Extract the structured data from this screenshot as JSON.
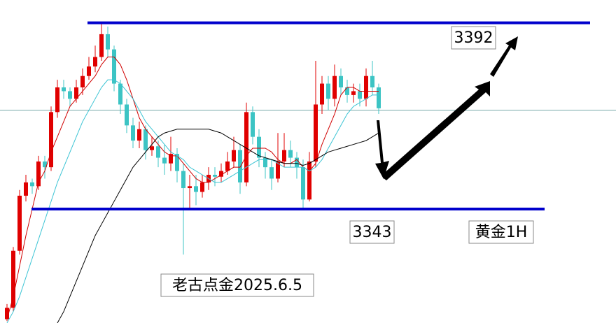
{
  "chart_data": {
    "type": "candlestick",
    "ylim": [
      3313,
      3398
    ],
    "up_color": "#e00000",
    "down_color": "#3cc4c4",
    "open": [
      3314,
      3317,
      3332,
      3346.5,
      3350,
      3349,
      3355.5,
      3354,
      3368.5,
      3375,
      3374,
      3372,
      3375,
      3378,
      3380.5,
      3383,
      3389,
      3385,
      3376,
      3370.5,
      3365,
      3361,
      3364,
      3358.5,
      3359.5,
      3356.5,
      3355,
      3357.5,
      3353,
      3348.5,
      3349,
      3347.5,
      3350,
      3352,
      3351.5,
      3353,
      3355.5,
      3358.5,
      3350,
      3368.5,
      3362,
      3356.5,
      3354,
      3351,
      3355.5,
      3358.5,
      3356.5,
      3354,
      3345.5,
      3355.5,
      3370.5,
      3376,
      3372,
      3378,
      3375,
      3373,
      3374,
      3372,
      3378,
      3375
    ],
    "high": [
      3318,
      3333,
      3348,
      3352,
      3351,
      3357,
      3357,
      3370,
      3377,
      3377,
      3375,
      3377,
      3380,
      3383,
      3386,
      3392,
      3391,
      3386,
      3377,
      3372,
      3367,
      3366,
      3365,
      3362,
      3361,
      3360,
      3362,
      3359,
      3355,
      3352,
      3352,
      3352,
      3354,
      3354,
      3355,
      3358,
      3362,
      3360,
      3371,
      3370,
      3364,
      3358,
      3356,
      3363,
      3363,
      3361,
      3358,
      3356,
      3358,
      3382,
      3378,
      3378,
      3381,
      3380,
      3377,
      3376,
      3376,
      3380,
      3382,
      3376
    ],
    "low": [
      3313.5,
      3316,
      3331,
      3345,
      3347,
      3348,
      3351,
      3353,
      3367,
      3372,
      3370,
      3371,
      3373,
      3377,
      3379,
      3382,
      3383,
      3374,
      3368,
      3363,
      3359,
      3359,
      3356,
      3357,
      3354,
      3352,
      3353,
      3350,
      3331,
      3343,
      3344,
      3346,
      3348,
      3349,
      3350,
      3352,
      3354,
      3347,
      3349,
      3360,
      3354,
      3351,
      3348,
      3350,
      3354,
      3354,
      3351,
      3343,
      3345,
      3354,
      3368,
      3369,
      3370,
      3373,
      3371,
      3371,
      3370,
      3370,
      3373,
      3368
    ],
    "close": [
      3317,
      3332,
      3346.5,
      3350,
      3349,
      3355.5,
      3354,
      3368.5,
      3375,
      3374,
      3372,
      3375,
      3378,
      3380.5,
      3383,
      3389,
      3385,
      3376,
      3370.5,
      3365,
      3361,
      3364,
      3358.5,
      3359.5,
      3356.5,
      3355,
      3357.5,
      3353,
      3348.5,
      3349,
      3347.5,
      3350,
      3352,
      3351.5,
      3353,
      3355.5,
      3358.5,
      3350,
      3368.5,
      3362,
      3356.5,
      3354,
      3351,
      3355.5,
      3358.5,
      3356.5,
      3354,
      3345.5,
      3355.5,
      3370.5,
      3376,
      3372,
      3378,
      3375,
      3373,
      3374,
      3372,
      3378,
      3375,
      3369.5
    ],
    "lines": [
      {
        "color": "#d00000",
        "values": [
          3314,
          3320,
          3328,
          3336,
          3343,
          3350,
          3353,
          3358,
          3362,
          3366,
          3370,
          3372,
          3374,
          3376,
          3378,
          3381,
          3383,
          3383,
          3381,
          3377,
          3372,
          3367,
          3364,
          3362,
          3360,
          3358,
          3357,
          3357,
          3355,
          3353,
          3351,
          3350,
          3350,
          3351,
          3352,
          3353,
          3354,
          3354,
          3357,
          3359,
          3359,
          3359,
          3358,
          3356,
          3355,
          3355,
          3356,
          3354,
          3353,
          3355,
          3360,
          3364,
          3368,
          3373,
          3375,
          3375,
          3374,
          3374,
          3374,
          3374
        ]
      },
      {
        "color": "#3cc4d4",
        "values": [
          3313,
          3316,
          3320,
          3325,
          3330,
          3335,
          3340,
          3345,
          3350,
          3354,
          3358,
          3362,
          3366,
          3369,
          3372,
          3375,
          3377,
          3377,
          3376,
          3374,
          3372,
          3369,
          3366,
          3364,
          3362,
          3360,
          3358,
          3357,
          3356,
          3354,
          3353,
          3352,
          3351,
          3350,
          3350,
          3351,
          3352,
          3353,
          3354,
          3355,
          3356,
          3356,
          3356,
          3355,
          3354,
          3354,
          3354,
          3354,
          3353,
          3354,
          3356,
          3359,
          3362,
          3365,
          3368,
          3370,
          3371,
          3372,
          3373,
          3373
        ]
      },
      {
        "color": "#000000",
        "values": [
          null,
          null,
          null,
          null,
          null,
          null,
          null,
          null,
          3313,
          3316,
          3320,
          3324,
          3328,
          3332,
          3336,
          3339,
          3342,
          3345,
          3348,
          3351,
          3354,
          3356,
          3358,
          3360,
          3362,
          3363,
          3363.5,
          3364,
          3364,
          3364,
          3364,
          3364,
          3364,
          3363.5,
          3363,
          3362,
          3361,
          3360,
          3359,
          3358,
          3357,
          3356.5,
          3356,
          3355.5,
          3355,
          3355,
          3355,
          3354.5,
          3355,
          3356,
          3357,
          3358,
          3358.5,
          3359,
          3359.5,
          3360,
          3360.5,
          3361,
          3362,
          3363
        ]
      }
    ],
    "current_price_line": 3369,
    "levels": [
      3392,
      3343
    ],
    "level_color": "#0000cc",
    "annotations": [
      "黄金1H",
      "老古点金2025.6.5"
    ]
  }
}
